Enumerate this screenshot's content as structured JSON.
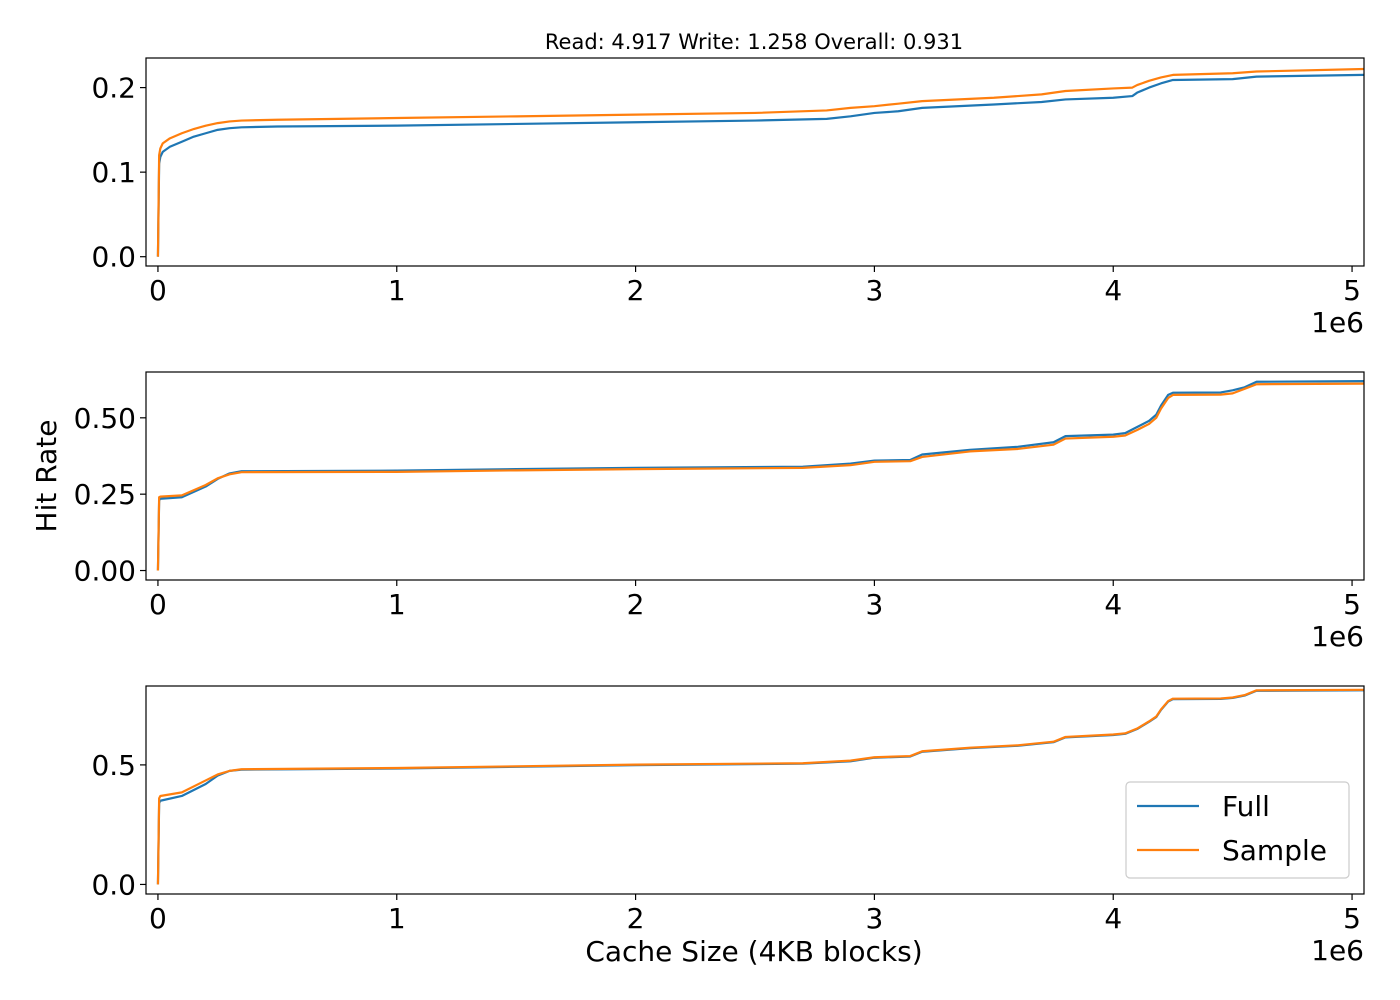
{
  "figure": {
    "title": "Read: 4.917 Write: 1.258 Overall: 0.931",
    "ylabel": "Hit Rate",
    "xlabel": "Cache Size (4KB blocks)",
    "colors": {
      "full": "#1f77b4",
      "sample": "#ff7f0e"
    }
  },
  "chart_data": [
    {
      "type": "line",
      "xlim": [
        -50000,
        5050000
      ],
      "ylim": [
        -0.011,
        0.235
      ],
      "x_ticks": [
        0,
        1,
        2,
        3,
        4,
        5
      ],
      "x_tick_values": [
        0,
        1000000,
        2000000,
        3000000,
        4000000,
        5000000
      ],
      "x_offset_label": "1e6",
      "y_ticks": [
        "0.0",
        "0.1",
        "0.2"
      ],
      "y_tick_values": [
        0.0,
        0.1,
        0.2
      ],
      "series": [
        {
          "name": "Full",
          "x": [
            0,
            5000,
            10000,
            20000,
            50000,
            100000,
            150000,
            200000,
            250000,
            300000,
            350000,
            500000,
            1000000,
            1500000,
            2000000,
            2500000,
            2800000,
            2900000,
            3000000,
            3100000,
            3200000,
            3500000,
            3700000,
            3800000,
            4000000,
            4080000,
            4100000,
            4150000,
            4200000,
            4250000,
            4500000,
            4600000,
            5050000
          ],
          "y": [
            0.0,
            0.11,
            0.118,
            0.124,
            0.13,
            0.136,
            0.142,
            0.146,
            0.15,
            0.152,
            0.153,
            0.154,
            0.155,
            0.157,
            0.159,
            0.161,
            0.163,
            0.166,
            0.17,
            0.172,
            0.176,
            0.18,
            0.183,
            0.186,
            0.188,
            0.19,
            0.194,
            0.2,
            0.205,
            0.209,
            0.21,
            0.213,
            0.215
          ]
        },
        {
          "name": "Sample",
          "x": [
            0,
            5000,
            10000,
            20000,
            50000,
            100000,
            150000,
            200000,
            250000,
            300000,
            350000,
            500000,
            1000000,
            1500000,
            2000000,
            2500000,
            2800000,
            2900000,
            3000000,
            3100000,
            3200000,
            3500000,
            3700000,
            3800000,
            4000000,
            4080000,
            4100000,
            4150000,
            4200000,
            4250000,
            4500000,
            4600000,
            5050000
          ],
          "y": [
            0.0,
            0.12,
            0.128,
            0.134,
            0.14,
            0.146,
            0.151,
            0.155,
            0.158,
            0.16,
            0.161,
            0.162,
            0.164,
            0.166,
            0.168,
            0.17,
            0.173,
            0.176,
            0.178,
            0.181,
            0.184,
            0.188,
            0.192,
            0.196,
            0.199,
            0.2,
            0.203,
            0.208,
            0.212,
            0.215,
            0.217,
            0.219,
            0.222
          ]
        }
      ]
    },
    {
      "type": "line",
      "xlim": [
        -50000,
        5050000
      ],
      "ylim": [
        -0.031,
        0.65
      ],
      "x_ticks": [
        0,
        1,
        2,
        3,
        4,
        5
      ],
      "x_tick_values": [
        0,
        1000000,
        2000000,
        3000000,
        4000000,
        5000000
      ],
      "x_offset_label": "1e6",
      "y_ticks": [
        "0.00",
        "0.25",
        "0.50"
      ],
      "y_tick_values": [
        0.0,
        0.25,
        0.5
      ],
      "series": [
        {
          "name": "Full",
          "x": [
            0,
            5000,
            10000,
            100000,
            200000,
            250000,
            300000,
            350000,
            1000000,
            1500000,
            2000000,
            2700000,
            2900000,
            3000000,
            3150000,
            3200000,
            3400000,
            3600000,
            3750000,
            3800000,
            4000000,
            4050000,
            4100000,
            4150000,
            4180000,
            4200000,
            4230000,
            4250000,
            4450000,
            4500000,
            4550000,
            4600000,
            5050000
          ],
          "y": [
            0.0,
            0.23,
            0.235,
            0.24,
            0.275,
            0.3,
            0.318,
            0.325,
            0.327,
            0.332,
            0.336,
            0.34,
            0.35,
            0.36,
            0.362,
            0.38,
            0.395,
            0.405,
            0.42,
            0.44,
            0.445,
            0.45,
            0.47,
            0.49,
            0.51,
            0.54,
            0.575,
            0.582,
            0.583,
            0.59,
            0.6,
            0.618,
            0.62
          ]
        },
        {
          "name": "Sample",
          "x": [
            0,
            5000,
            10000,
            100000,
            200000,
            250000,
            300000,
            350000,
            1000000,
            1500000,
            2000000,
            2700000,
            2900000,
            3000000,
            3150000,
            3200000,
            3400000,
            3600000,
            3750000,
            3800000,
            4000000,
            4050000,
            4100000,
            4150000,
            4180000,
            4200000,
            4230000,
            4250000,
            4450000,
            4500000,
            4550000,
            4600000,
            5050000
          ],
          "y": [
            0.0,
            0.24,
            0.242,
            0.246,
            0.28,
            0.302,
            0.315,
            0.322,
            0.323,
            0.328,
            0.332,
            0.336,
            0.345,
            0.356,
            0.358,
            0.372,
            0.39,
            0.398,
            0.412,
            0.432,
            0.438,
            0.442,
            0.46,
            0.48,
            0.5,
            0.53,
            0.565,
            0.575,
            0.576,
            0.58,
            0.595,
            0.61,
            0.612
          ]
        }
      ]
    },
    {
      "type": "line",
      "xlim": [
        -50000,
        5050000
      ],
      "ylim": [
        -0.04,
        0.83
      ],
      "x_ticks": [
        0,
        1,
        2,
        3,
        4,
        5
      ],
      "x_tick_values": [
        0,
        1000000,
        2000000,
        3000000,
        4000000,
        5000000
      ],
      "x_offset_label": "1e6",
      "y_ticks": [
        "0.0",
        "0.5"
      ],
      "y_tick_values": [
        0.0,
        0.5
      ],
      "legend": {
        "location": "lower-right",
        "entries": [
          "Full",
          "Sample"
        ]
      },
      "series": [
        {
          "name": "Full",
          "x": [
            0,
            5000,
            10000,
            100000,
            200000,
            250000,
            300000,
            350000,
            1000000,
            1500000,
            2000000,
            2700000,
            2900000,
            3000000,
            3150000,
            3200000,
            3400000,
            3600000,
            3750000,
            3800000,
            4000000,
            4050000,
            4100000,
            4150000,
            4180000,
            4200000,
            4230000,
            4250000,
            4450000,
            4500000,
            4550000,
            4600000,
            5050000
          ],
          "y": [
            0.0,
            0.34,
            0.35,
            0.37,
            0.42,
            0.455,
            0.475,
            0.48,
            0.485,
            0.492,
            0.499,
            0.505,
            0.515,
            0.53,
            0.535,
            0.555,
            0.57,
            0.58,
            0.595,
            0.615,
            0.625,
            0.63,
            0.65,
            0.68,
            0.7,
            0.73,
            0.765,
            0.775,
            0.776,
            0.78,
            0.79,
            0.81,
            0.812
          ]
        },
        {
          "name": "Sample",
          "x": [
            0,
            5000,
            10000,
            100000,
            200000,
            250000,
            300000,
            350000,
            1000000,
            1500000,
            2000000,
            2700000,
            2900000,
            3000000,
            3150000,
            3200000,
            3400000,
            3600000,
            3750000,
            3800000,
            4000000,
            4050000,
            4100000,
            4150000,
            4180000,
            4200000,
            4230000,
            4250000,
            4450000,
            4500000,
            4550000,
            4600000,
            5050000
          ],
          "y": [
            0.0,
            0.36,
            0.37,
            0.385,
            0.435,
            0.46,
            0.475,
            0.482,
            0.487,
            0.494,
            0.501,
            0.507,
            0.518,
            0.532,
            0.537,
            0.557,
            0.572,
            0.582,
            0.597,
            0.617,
            0.627,
            0.632,
            0.652,
            0.682,
            0.702,
            0.732,
            0.767,
            0.777,
            0.778,
            0.782,
            0.792,
            0.812,
            0.814
          ]
        }
      ]
    }
  ]
}
